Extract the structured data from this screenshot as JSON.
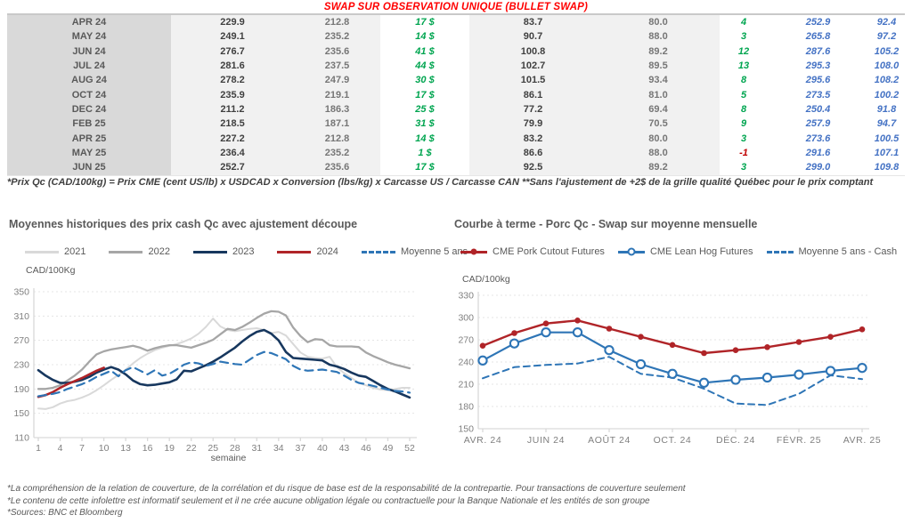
{
  "header": {
    "title": "SWAP SUR OBSERVATION UNIQUE (BULLET SWAP)"
  },
  "colors": {
    "title_red": "#ff0000",
    "green_value": "#00a550",
    "blue_value": "#4472c4",
    "negative_red": "#c00000",
    "month_bg": "#d9d9d9",
    "stripe_bg": "#f1f1f1"
  },
  "table": {
    "rows": [
      [
        "APR 24",
        "229.9",
        "212.8",
        "17 $",
        "83.7",
        "80.0",
        "4",
        "252.9",
        "92.4"
      ],
      [
        "MAY 24",
        "249.1",
        "235.2",
        "14 $",
        "90.7",
        "88.0",
        "3",
        "265.8",
        "97.2"
      ],
      [
        "JUN 24",
        "276.7",
        "235.6",
        "41 $",
        "100.8",
        "89.2",
        "12",
        "287.6",
        "105.2"
      ],
      [
        "JUL 24",
        "281.6",
        "237.5",
        "44 $",
        "102.7",
        "89.5",
        "13",
        "295.3",
        "108.0"
      ],
      [
        "AUG 24",
        "278.2",
        "247.9",
        "30 $",
        "101.5",
        "93.4",
        "8",
        "295.6",
        "108.2"
      ],
      [
        "OCT 24",
        "235.9",
        "219.1",
        "17 $",
        "86.1",
        "81.0",
        "5",
        "273.5",
        "100.2"
      ],
      [
        "DEC 24",
        "211.2",
        "186.3",
        "25 $",
        "77.2",
        "69.4",
        "8",
        "250.4",
        "91.8"
      ],
      [
        "FEB 25",
        "218.5",
        "187.1",
        "31 $",
        "79.9",
        "70.5",
        "9",
        "257.9",
        "94.7"
      ],
      [
        "APR 25",
        "227.2",
        "212.8",
        "14 $",
        "83.2",
        "80.0",
        "3",
        "273.6",
        "100.5"
      ],
      [
        "MAY 25",
        "236.4",
        "235.2",
        "1 $",
        "86.6",
        "88.0",
        "-1",
        "291.6",
        "107.1"
      ],
      [
        "JUN 25",
        "252.7",
        "235.6",
        "17 $",
        "92.5",
        "89.2",
        "3",
        "299.0",
        "109.8"
      ]
    ],
    "footnote": "*Prix Qc (CAD/100kg) = Prix CME (cent US/lb) x USDCAD x Conversion (lbs/kg) x Carcasse US / Carcasse CAN **Sans l'ajustement de +2$ de la grille qualité Québec pour le prix comptant"
  },
  "chart_data": [
    {
      "type": "line",
      "title": "Moyennes historiques des prix cash Qc avec ajustement découpe",
      "ylabel": "CAD/100Kg",
      "xlabel": "semaine",
      "ylim": [
        110,
        350
      ],
      "yticks": [
        110,
        150,
        190,
        230,
        270,
        310,
        350
      ],
      "xticks": [
        1,
        4,
        7,
        10,
        13,
        16,
        19,
        22,
        25,
        28,
        31,
        34,
        37,
        40,
        43,
        46,
        49,
        52
      ],
      "x_range": [
        1,
        52
      ],
      "grid": "horizontal-dashed",
      "legend_position": "top",
      "series": [
        {
          "name": "2021",
          "color": "#d9d9d9",
          "style": "solid",
          "values": [
            158,
            157,
            160,
            166,
            170,
            172,
            176,
            181,
            188,
            196,
            205,
            213,
            222,
            232,
            241,
            248,
            254,
            258,
            261,
            264,
            268,
            273,
            281,
            292,
            306,
            293,
            287,
            285,
            287,
            289,
            290,
            287,
            282,
            284,
            278,
            264,
            250,
            243,
            241,
            240,
            243,
            226,
            216,
            208,
            200,
            196,
            192,
            189,
            188,
            190,
            192,
            192
          ]
        },
        {
          "name": "2022",
          "color": "#a6a6a6",
          "style": "solid",
          "values": [
            190,
            190,
            192,
            196,
            204,
            212,
            222,
            235,
            247,
            252,
            255,
            257,
            259,
            261,
            258,
            253,
            257,
            260,
            262,
            262,
            260,
            258,
            262,
            266,
            271,
            280,
            289,
            287,
            292,
            299,
            307,
            314,
            318,
            317,
            311,
            291,
            277,
            267,
            272,
            271,
            262,
            260,
            260,
            260,
            259,
            250,
            244,
            239,
            234,
            230,
            227,
            224
          ]
        },
        {
          "name": "2023",
          "color": "#17375e",
          "style": "solid",
          "values": [
            221,
            212,
            205,
            200,
            200,
            202,
            205,
            210,
            217,
            222,
            226,
            222,
            214,
            204,
            198,
            196,
            197,
            199,
            201,
            206,
            220,
            219,
            224,
            229,
            235,
            242,
            250,
            258,
            268,
            277,
            284,
            287,
            281,
            270,
            251,
            241,
            240,
            239,
            238,
            237,
            230,
            227,
            223,
            217,
            212,
            210,
            203,
            196,
            190,
            186,
            181,
            176
          ]
        },
        {
          "name": "2024",
          "color": "#b02428",
          "style": "solid",
          "values": [
            177,
            180,
            185,
            192,
            198,
            203,
            208,
            214,
            220,
            225
          ]
        },
        {
          "name": "Moyenne 5 ans",
          "color": "#2e75b6",
          "style": "dashed",
          "values": [
            178,
            180,
            182,
            185,
            190,
            194,
            198,
            203,
            210,
            215,
            220,
            211,
            221,
            226,
            220,
            214,
            221,
            212,
            215,
            222,
            230,
            234,
            232,
            228,
            231,
            235,
            233,
            231,
            230,
            238,
            246,
            251,
            249,
            244,
            239,
            228,
            222,
            220,
            221,
            222,
            220,
            218,
            212,
            205,
            200,
            198,
            195,
            192,
            189,
            187,
            186,
            184
          ]
        }
      ]
    },
    {
      "type": "line",
      "title": "Courbe à terme - Porc Qc - Swap sur moyenne mensuelle",
      "ylabel": "CAD/100kg",
      "xlabel": "",
      "ylim": [
        150,
        330
      ],
      "yticks": [
        150,
        180,
        210,
        240,
        270,
        300,
        330
      ],
      "x_labels": [
        "AVR. 24",
        "JUIN 24",
        "AOÛT 24",
        "OCT. 24",
        "DÉC. 24",
        "FÉVR. 25",
        "AVR. 25"
      ],
      "n_points": 13,
      "grid": "horizontal-dashed",
      "legend_position": "top",
      "series": [
        {
          "name": "CME Pork Cutout Futures",
          "color": "#b02428",
          "style": "solid",
          "marker": "filled-circle",
          "values": [
            262,
            279,
            292,
            296,
            285,
            274,
            263,
            252,
            256,
            260,
            267,
            274,
            284
          ]
        },
        {
          "name": "CME Lean Hog Futures",
          "color": "#2e75b6",
          "style": "solid",
          "marker": "open-circle",
          "values": [
            242,
            265,
            280,
            280,
            256,
            237,
            224,
            212,
            216,
            219,
            223,
            228,
            232
          ]
        },
        {
          "name": "Moyenne 5 ans - Cash",
          "color": "#2e75b6",
          "style": "dashed",
          "values": [
            218,
            233,
            236,
            238,
            247,
            224,
            219,
            204,
            184,
            182,
            197,
            222,
            217
          ]
        }
      ]
    }
  ],
  "footnotes": [
    "*La compréhension de la relation de couverture, de la corrélation et du risque de base est de la responsabilité de la contrepartie. Pour transactions de couverture seulement",
    "*Le contenu de cette infolettre est informatif seulement et il ne crée aucune obligation légale ou contractuelle pour la Banque Nationale et les entités de son groupe",
    "*Sources: BNC et Bloomberg"
  ]
}
